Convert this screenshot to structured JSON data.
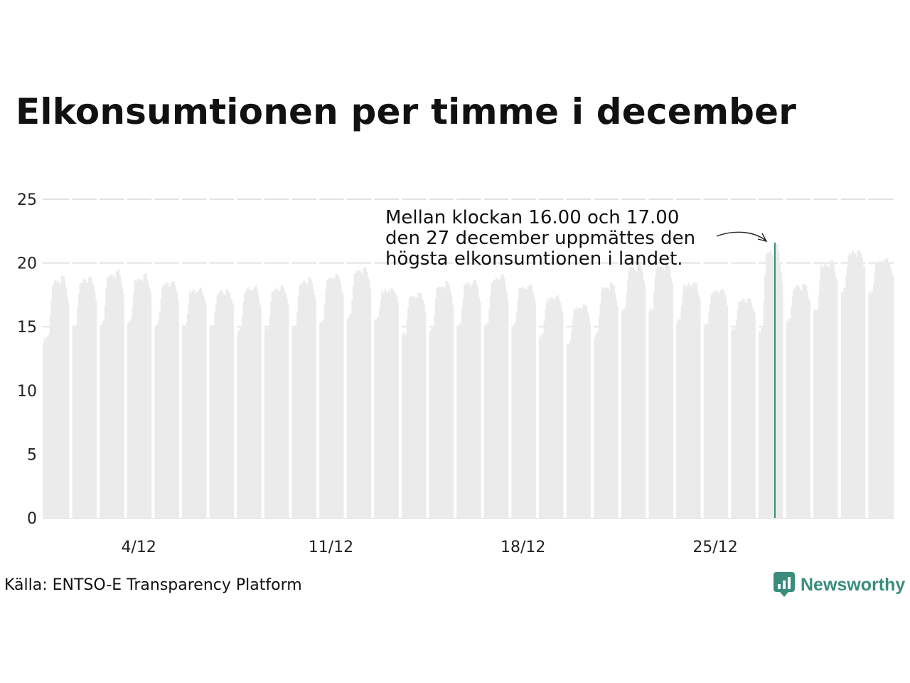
{
  "header": {
    "title": "Elkonsumtionen per timme i december"
  },
  "footer": {
    "source": "Källa: ENTSO-E Transparency Platform",
    "brand": "Newsworthy",
    "brand_color": "#3a8c7c"
  },
  "chart_data": {
    "type": "bar",
    "title": "Elkonsumtionen per timme i december",
    "xlabel": "",
    "ylabel": "",
    "ylim": [
      0,
      25
    ],
    "yticks": [
      0,
      5,
      10,
      15,
      20,
      25
    ],
    "grid": true,
    "bar_color": "#ebebeb",
    "highlight_color": "#3a8c7c",
    "x_axis": {
      "unit": "hour of December",
      "ticks": [
        {
          "day": 4,
          "label": "4/12"
        },
        {
          "day": 11,
          "label": "11/12"
        },
        {
          "day": 18,
          "label": "18/12"
        },
        {
          "day": 25,
          "label": "25/12"
        }
      ]
    },
    "days": [
      {
        "day": 1,
        "night": 13.9,
        "peak": 19.0
      },
      {
        "day": 2,
        "night": 14.8,
        "peak": 19.0
      },
      {
        "day": 3,
        "night": 15.0,
        "peak": 19.6
      },
      {
        "day": 4,
        "night": 15.2,
        "peak": 19.2
      },
      {
        "day": 5,
        "night": 15.0,
        "peak": 18.7
      },
      {
        "day": 6,
        "night": 14.9,
        "peak": 18.1
      },
      {
        "day": 7,
        "night": 14.8,
        "peak": 18.0
      },
      {
        "day": 8,
        "night": 14.4,
        "peak": 18.3
      },
      {
        "day": 9,
        "night": 14.6,
        "peak": 18.3
      },
      {
        "day": 10,
        "night": 14.6,
        "peak": 18.9
      },
      {
        "day": 11,
        "night": 15.2,
        "peak": 19.2
      },
      {
        "day": 12,
        "night": 15.6,
        "peak": 19.8
      },
      {
        "day": 13,
        "night": 15.4,
        "peak": 18.1
      },
      {
        "day": 14,
        "night": 14.2,
        "peak": 17.7
      },
      {
        "day": 15,
        "night": 14.4,
        "peak": 18.6
      },
      {
        "day": 16,
        "night": 14.9,
        "peak": 18.7
      },
      {
        "day": 17,
        "night": 14.8,
        "peak": 19.2
      },
      {
        "day": 18,
        "night": 14.9,
        "peak": 18.4
      },
      {
        "day": 19,
        "night": 14.1,
        "peak": 17.5
      },
      {
        "day": 20,
        "night": 13.5,
        "peak": 16.8
      },
      {
        "day": 21,
        "night": 14.1,
        "peak": 18.5
      },
      {
        "day": 22,
        "night": 16.0,
        "peak": 20.0
      },
      {
        "day": 23,
        "night": 16.1,
        "peak": 20.2
      },
      {
        "day": 24,
        "night": 15.3,
        "peak": 18.6
      },
      {
        "day": 25,
        "night": 15.0,
        "peak": 18.0
      },
      {
        "day": 26,
        "night": 14.6,
        "peak": 17.3
      },
      {
        "day": 27,
        "night": 14.2,
        "peak": 21.6
      },
      {
        "day": 28,
        "night": 15.3,
        "peak": 18.4
      },
      {
        "day": 29,
        "night": 16.0,
        "peak": 20.3
      },
      {
        "day": 30,
        "night": 17.6,
        "peak": 21.1
      },
      {
        "day": 31,
        "night": 17.5,
        "peak": 20.4
      }
    ],
    "gaps": [
      {
        "day": 2,
        "hour": 0
      },
      {
        "day": 3,
        "hour": 0
      },
      {
        "day": 4,
        "hour": 0
      },
      {
        "day": 5,
        "hour": 0
      },
      {
        "day": 6,
        "hour": 0
      },
      {
        "day": 7,
        "hour": 0
      },
      {
        "day": 8,
        "hour": 0
      },
      {
        "day": 9,
        "hour": 0
      },
      {
        "day": 10,
        "hour": 0
      },
      {
        "day": 11,
        "hour": 0
      },
      {
        "day": 12,
        "hour": 0
      },
      {
        "day": 13,
        "hour": 0
      },
      {
        "day": 14,
        "hour": 0
      },
      {
        "day": 15,
        "hour": 0
      },
      {
        "day": 16,
        "hour": 0
      },
      {
        "day": 17,
        "hour": 0
      },
      {
        "day": 18,
        "hour": 0
      },
      {
        "day": 19,
        "hour": 0
      },
      {
        "day": 20,
        "hour": 0
      },
      {
        "day": 21,
        "hour": 0
      },
      {
        "day": 22,
        "hour": 0
      },
      {
        "day": 23,
        "hour": 0
      },
      {
        "day": 24,
        "hour": 0
      },
      {
        "day": 25,
        "hour": 0
      },
      {
        "day": 26,
        "hour": 0
      },
      {
        "day": 27,
        "hour": 0
      },
      {
        "day": 28,
        "hour": 0
      },
      {
        "day": 29,
        "hour": 0
      },
      {
        "day": 30,
        "hour": 0
      },
      {
        "day": 31,
        "hour": 0
      }
    ],
    "highlight": {
      "day": 27,
      "hour": 16,
      "value": 21.6,
      "annotation": [
        "Mellan klockan 16.00 och 17.00",
        "den 27 december uppmättes den",
        "högsta elkonsumtionen i landet."
      ]
    }
  }
}
